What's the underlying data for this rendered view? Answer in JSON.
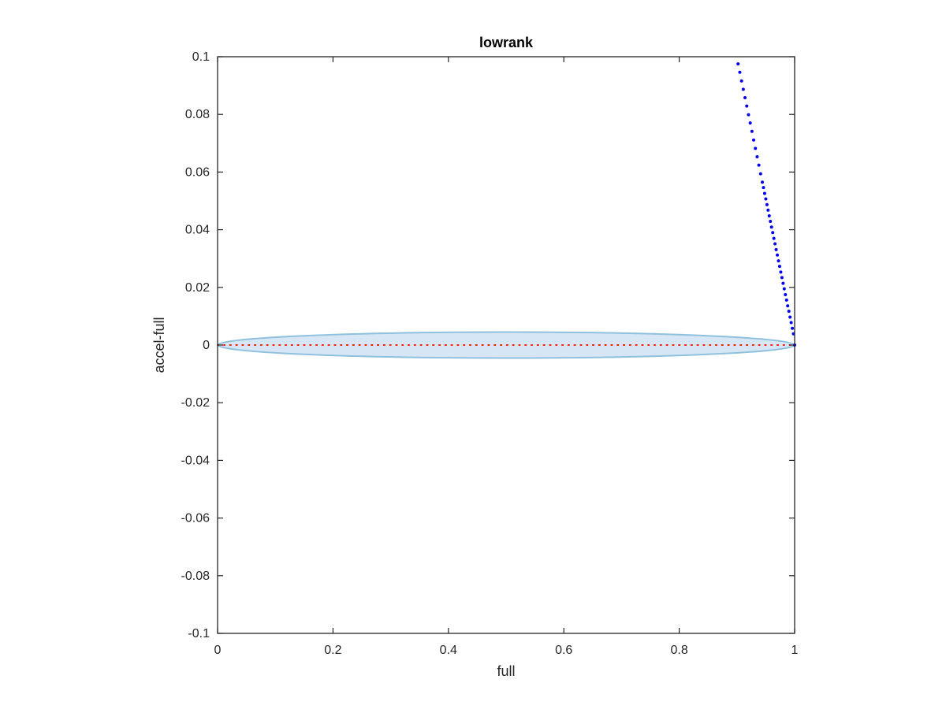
{
  "chart_data": {
    "type": "scatter",
    "title": "lowrank",
    "xlabel": "full",
    "ylabel": "accel-full",
    "xlim": [
      0,
      1
    ],
    "ylim": [
      -0.1,
      0.1
    ],
    "grid": false,
    "box": true,
    "xticks": [
      0,
      0.2,
      0.4,
      0.6,
      0.8,
      1
    ],
    "xtick_labels": [
      "0",
      "0.2",
      "0.4",
      "0.6",
      "0.8",
      "1"
    ],
    "yticks": [
      -0.1,
      -0.08,
      -0.06,
      -0.04,
      -0.02,
      0,
      0.02,
      0.04,
      0.06,
      0.08,
      0.1
    ],
    "ytick_labels": [
      "-0.1",
      "-0.08",
      "-0.06",
      "-0.04",
      "-0.02",
      "0",
      "0.02",
      "0.04",
      "0.06",
      "0.08",
      "0.1"
    ],
    "region": {
      "shape": "ellipse",
      "center": [
        0.5,
        0
      ],
      "half_width_x": 0.5,
      "half_height_y": 0.0045,
      "fill_color": "#d6e6f4",
      "edge_color": "#8fc1de"
    },
    "reference_line": {
      "style": "dotted",
      "color": "#ff0000",
      "x": [
        0,
        1
      ],
      "y": [
        0,
        0
      ]
    },
    "scatter_series": {
      "color": "#0000ee",
      "x": [
        0.902,
        0.905,
        0.908,
        0.911,
        0.914,
        0.917,
        0.92,
        0.923,
        0.926,
        0.929,
        0.932,
        0.935,
        0.938,
        0.941,
        0.944,
        0.946,
        0.948,
        0.95,
        0.952,
        0.954,
        0.956,
        0.958,
        0.96,
        0.962,
        0.964,
        0.966,
        0.968,
        0.97,
        0.972,
        0.974,
        0.976,
        0.978,
        0.98,
        0.982,
        0.984,
        0.986,
        0.988,
        0.99,
        0.992,
        0.994,
        0.996,
        0.998,
        1.0
      ],
      "y": [
        0.0975,
        0.0946,
        0.0916,
        0.0887,
        0.0858,
        0.0829,
        0.0799,
        0.077,
        0.0741,
        0.0711,
        0.0682,
        0.0653,
        0.0624,
        0.0594,
        0.0565,
        0.0546,
        0.0526,
        0.0507,
        0.0487,
        0.0468,
        0.0448,
        0.0429,
        0.0409,
        0.039,
        0.037,
        0.0351,
        0.0331,
        0.0312,
        0.0292,
        0.0273,
        0.0253,
        0.0234,
        0.0214,
        0.0195,
        0.0175,
        0.0156,
        0.0136,
        0.0117,
        0.0097,
        0.0078,
        0.0058,
        0.0039,
        0.0
      ]
    }
  }
}
